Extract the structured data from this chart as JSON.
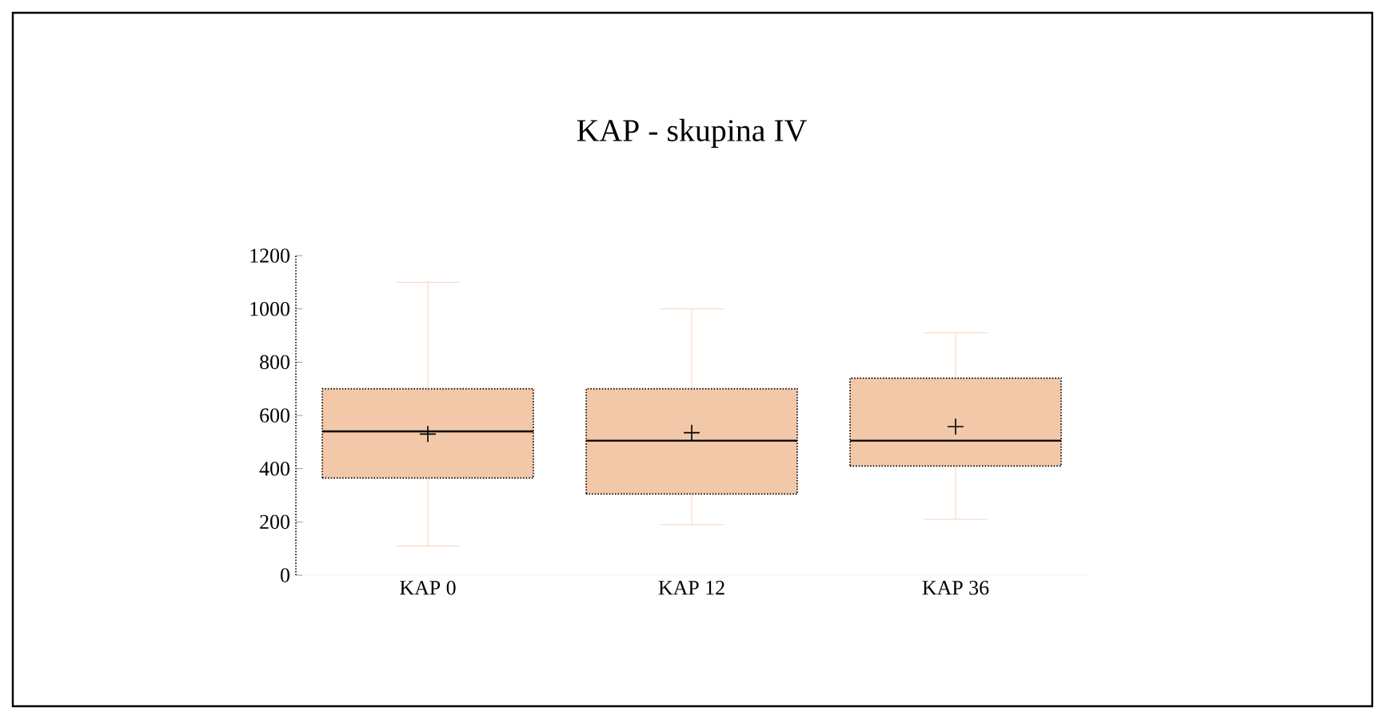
{
  "chart_data": {
    "type": "box",
    "title": "KAP - skupina IV",
    "categories": [
      "KAP 0",
      "KAP 12",
      "KAP 36"
    ],
    "boxes": [
      {
        "low": 110,
        "q1": 365,
        "median": 540,
        "q3": 700,
        "high": 1100,
        "mean": 530
      },
      {
        "low": 190,
        "q1": 305,
        "median": 505,
        "q3": 700,
        "high": 1000,
        "mean": 535
      },
      {
        "low": 210,
        "q1": 410,
        "median": 505,
        "q3": 740,
        "high": 910,
        "mean": 558
      }
    ],
    "color": "#f2c8a8",
    "ylim": [
      0,
      1200
    ],
    "yticks": [
      0,
      200,
      400,
      600,
      800,
      1000,
      1200
    ],
    "grid": false
  }
}
